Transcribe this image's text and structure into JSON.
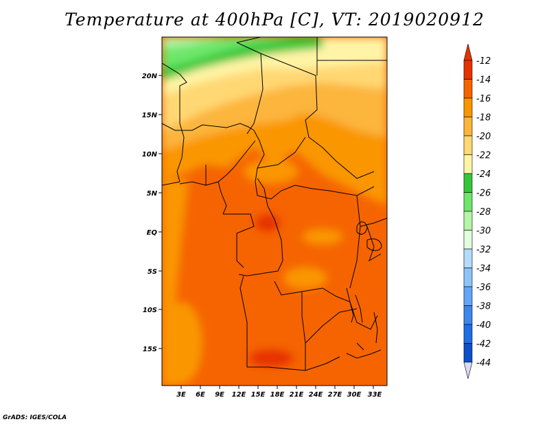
{
  "title": "Temperature at 400hPa [C], VT: 2019020912",
  "credit": "GrADS: IGES/COLA",
  "map": {
    "lon_labels": [
      "3E",
      "6E",
      "9E",
      "12E",
      "15E",
      "18E",
      "21E",
      "24E",
      "27E",
      "30E",
      "33E"
    ],
    "lat_labels": [
      "20N",
      "15N",
      "10N",
      "5N",
      "EQ",
      "5S",
      "10S",
      "15S"
    ]
  },
  "colorbar": {
    "labels": [
      "-12",
      "-14",
      "-16",
      "-18",
      "-20",
      "-22",
      "-24",
      "-26",
      "-28",
      "-30",
      "-32",
      "-34",
      "-36",
      "-38",
      "-40",
      "-42",
      "-44"
    ],
    "colors": [
      "#e63300",
      "#f56400",
      "#fa9600",
      "#fcb53c",
      "#ffd873",
      "#fff4a5",
      "#34c638",
      "#6ee66a",
      "#b4f5a6",
      "#e2fce0",
      "#b4dcfa",
      "#8cc3fa",
      "#64a5f5",
      "#3c87eb",
      "#1e6ee6",
      "#0a50c8",
      "#0a148c"
    ],
    "top_arrow_color": "#e63300",
    "bottom_arrow_color": "#d8dcf6"
  }
}
